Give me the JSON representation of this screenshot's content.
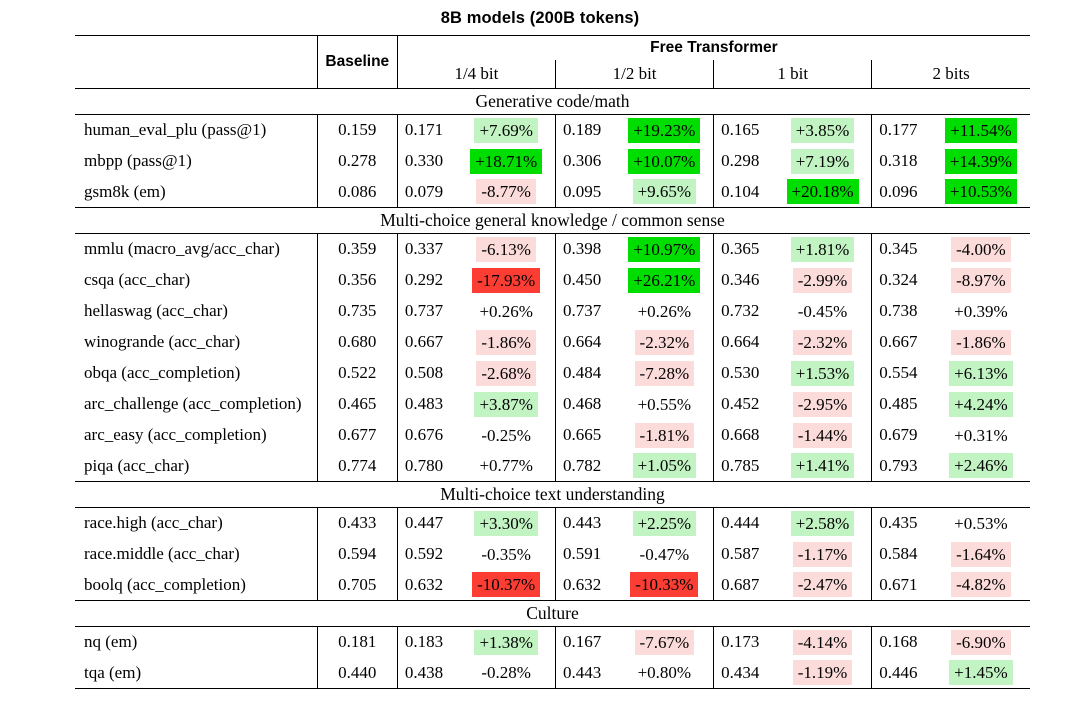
{
  "page_title": "8B models (200B tokens)",
  "table": {
    "header": {
      "baseline_label": "Baseline",
      "group_label": "Free Transformer",
      "bit_columns": [
        "1/4 bit",
        "1/2 bit",
        "1 bit",
        "2 bits"
      ]
    },
    "tone_colors": {
      "none": "transparent",
      "pos_light": "#c2f3c2",
      "pos_strong": "#00dd00",
      "neg_light": "#fcdbdb",
      "neg_strong": "#fc3d33"
    },
    "sections": [
      {
        "title": "Generative code/math",
        "rows": [
          {
            "label": "human_eval_plu (pass@1)",
            "baseline": "0.159",
            "cells": [
              {
                "value": "0.171",
                "delta": "+7.69%",
                "tone": "pos_light"
              },
              {
                "value": "0.189",
                "delta": "+19.23%",
                "tone": "pos_strong"
              },
              {
                "value": "0.165",
                "delta": "+3.85%",
                "tone": "pos_light"
              },
              {
                "value": "0.177",
                "delta": "+11.54%",
                "tone": "pos_strong"
              }
            ]
          },
          {
            "label": "mbpp (pass@1)",
            "baseline": "0.278",
            "cells": [
              {
                "value": "0.330",
                "delta": "+18.71%",
                "tone": "pos_strong"
              },
              {
                "value": "0.306",
                "delta": "+10.07%",
                "tone": "pos_strong"
              },
              {
                "value": "0.298",
                "delta": "+7.19%",
                "tone": "pos_light"
              },
              {
                "value": "0.318",
                "delta": "+14.39%",
                "tone": "pos_strong"
              }
            ]
          },
          {
            "label": "gsm8k (em)",
            "baseline": "0.086",
            "cells": [
              {
                "value": "0.079",
                "delta": "-8.77%",
                "tone": "neg_light"
              },
              {
                "value": "0.095",
                "delta": "+9.65%",
                "tone": "pos_light"
              },
              {
                "value": "0.104",
                "delta": "+20.18%",
                "tone": "pos_strong"
              },
              {
                "value": "0.096",
                "delta": "+10.53%",
                "tone": "pos_strong"
              }
            ]
          }
        ]
      },
      {
        "title": "Multi-choice general knowledge / common sense",
        "rows": [
          {
            "label": "mmlu (macro_avg/acc_char)",
            "baseline": "0.359",
            "cells": [
              {
                "value": "0.337",
                "delta": "-6.13%",
                "tone": "neg_light"
              },
              {
                "value": "0.398",
                "delta": "+10.97%",
                "tone": "pos_strong"
              },
              {
                "value": "0.365",
                "delta": "+1.81%",
                "tone": "pos_light"
              },
              {
                "value": "0.345",
                "delta": "-4.00%",
                "tone": "neg_light"
              }
            ]
          },
          {
            "label": "csqa (acc_char)",
            "baseline": "0.356",
            "cells": [
              {
                "value": "0.292",
                "delta": "-17.93%",
                "tone": "neg_strong"
              },
              {
                "value": "0.450",
                "delta": "+26.21%",
                "tone": "pos_strong"
              },
              {
                "value": "0.346",
                "delta": "-2.99%",
                "tone": "neg_light"
              },
              {
                "value": "0.324",
                "delta": "-8.97%",
                "tone": "neg_light"
              }
            ]
          },
          {
            "label": "hellaswag (acc_char)",
            "baseline": "0.735",
            "cells": [
              {
                "value": "0.737",
                "delta": "+0.26%",
                "tone": "none"
              },
              {
                "value": "0.737",
                "delta": "+0.26%",
                "tone": "none"
              },
              {
                "value": "0.732",
                "delta": "-0.45%",
                "tone": "none"
              },
              {
                "value": "0.738",
                "delta": "+0.39%",
                "tone": "none"
              }
            ]
          },
          {
            "label": "winogrande (acc_char)",
            "baseline": "0.680",
            "cells": [
              {
                "value": "0.667",
                "delta": "-1.86%",
                "tone": "neg_light"
              },
              {
                "value": "0.664",
                "delta": "-2.32%",
                "tone": "neg_light"
              },
              {
                "value": "0.664",
                "delta": "-2.32%",
                "tone": "neg_light"
              },
              {
                "value": "0.667",
                "delta": "-1.86%",
                "tone": "neg_light"
              }
            ]
          },
          {
            "label": "obqa (acc_completion)",
            "baseline": "0.522",
            "cells": [
              {
                "value": "0.508",
                "delta": "-2.68%",
                "tone": "neg_light"
              },
              {
                "value": "0.484",
                "delta": "-7.28%",
                "tone": "neg_light"
              },
              {
                "value": "0.530",
                "delta": "+1.53%",
                "tone": "pos_light"
              },
              {
                "value": "0.554",
                "delta": "+6.13%",
                "tone": "pos_light"
              }
            ]
          },
          {
            "label": "arc_challenge (acc_completion)",
            "baseline": "0.465",
            "cells": [
              {
                "value": "0.483",
                "delta": "+3.87%",
                "tone": "pos_light"
              },
              {
                "value": "0.468",
                "delta": "+0.55%",
                "tone": "none"
              },
              {
                "value": "0.452",
                "delta": "-2.95%",
                "tone": "neg_light"
              },
              {
                "value": "0.485",
                "delta": "+4.24%",
                "tone": "pos_light"
              }
            ]
          },
          {
            "label": "arc_easy (acc_completion)",
            "baseline": "0.677",
            "cells": [
              {
                "value": "0.676",
                "delta": "-0.25%",
                "tone": "none"
              },
              {
                "value": "0.665",
                "delta": "-1.81%",
                "tone": "neg_light"
              },
              {
                "value": "0.668",
                "delta": "-1.44%",
                "tone": "neg_light"
              },
              {
                "value": "0.679",
                "delta": "+0.31%",
                "tone": "none"
              }
            ]
          },
          {
            "label": "piqa (acc_char)",
            "baseline": "0.774",
            "cells": [
              {
                "value": "0.780",
                "delta": "+0.77%",
                "tone": "none"
              },
              {
                "value": "0.782",
                "delta": "+1.05%",
                "tone": "pos_light"
              },
              {
                "value": "0.785",
                "delta": "+1.41%",
                "tone": "pos_light"
              },
              {
                "value": "0.793",
                "delta": "+2.46%",
                "tone": "pos_light"
              }
            ]
          }
        ]
      },
      {
        "title": "Multi-choice text understanding",
        "rows": [
          {
            "label": "race.high (acc_char)",
            "baseline": "0.433",
            "cells": [
              {
                "value": "0.447",
                "delta": "+3.30%",
                "tone": "pos_light"
              },
              {
                "value": "0.443",
                "delta": "+2.25%",
                "tone": "pos_light"
              },
              {
                "value": "0.444",
                "delta": "+2.58%",
                "tone": "pos_light"
              },
              {
                "value": "0.435",
                "delta": "+0.53%",
                "tone": "none"
              }
            ]
          },
          {
            "label": "race.middle (acc_char)",
            "baseline": "0.594",
            "cells": [
              {
                "value": "0.592",
                "delta": "-0.35%",
                "tone": "none"
              },
              {
                "value": "0.591",
                "delta": "-0.47%",
                "tone": "none"
              },
              {
                "value": "0.587",
                "delta": "-1.17%",
                "tone": "neg_light"
              },
              {
                "value": "0.584",
                "delta": "-1.64%",
                "tone": "neg_light"
              }
            ]
          },
          {
            "label": "boolq (acc_completion)",
            "baseline": "0.705",
            "cells": [
              {
                "value": "0.632",
                "delta": "-10.37%",
                "tone": "neg_strong"
              },
              {
                "value": "0.632",
                "delta": "-10.33%",
                "tone": "neg_strong"
              },
              {
                "value": "0.687",
                "delta": "-2.47%",
                "tone": "neg_light"
              },
              {
                "value": "0.671",
                "delta": "-4.82%",
                "tone": "neg_light"
              }
            ]
          }
        ]
      },
      {
        "title": "Culture",
        "rows": [
          {
            "label": "nq (em)",
            "baseline": "0.181",
            "cells": [
              {
                "value": "0.183",
                "delta": "+1.38%",
                "tone": "pos_light"
              },
              {
                "value": "0.167",
                "delta": "-7.67%",
                "tone": "neg_light"
              },
              {
                "value": "0.173",
                "delta": "-4.14%",
                "tone": "neg_light"
              },
              {
                "value": "0.168",
                "delta": "-6.90%",
                "tone": "neg_light"
              }
            ]
          },
          {
            "label": "tqa (em)",
            "baseline": "0.440",
            "cells": [
              {
                "value": "0.438",
                "delta": "-0.28%",
                "tone": "none"
              },
              {
                "value": "0.443",
                "delta": "+0.80%",
                "tone": "none"
              },
              {
                "value": "0.434",
                "delta": "-1.19%",
                "tone": "neg_light"
              },
              {
                "value": "0.446",
                "delta": "+1.45%",
                "tone": "pos_light"
              }
            ]
          }
        ]
      }
    ]
  }
}
